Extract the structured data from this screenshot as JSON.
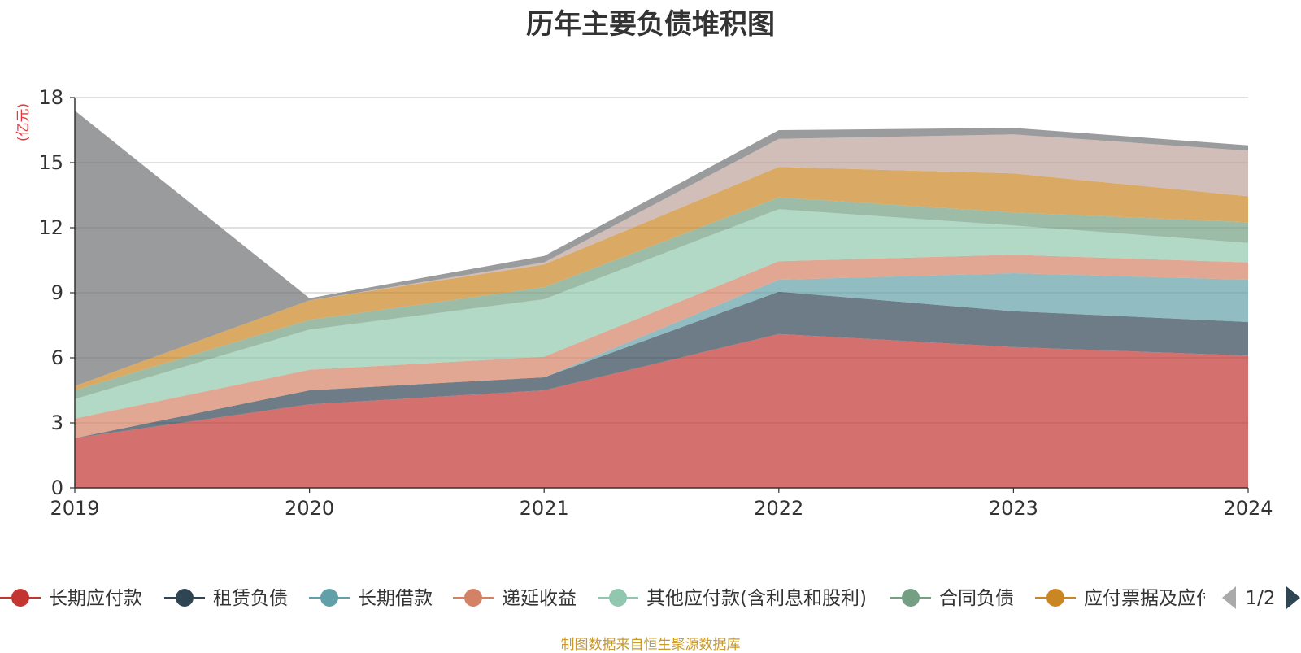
{
  "chart_data": {
    "type": "area",
    "title": "历年主要负债堆积图",
    "unit": "(亿元)",
    "x": [
      "2019",
      "2020",
      "2021",
      "2022",
      "2023",
      "2024"
    ],
    "ylim": [
      0,
      18
    ],
    "yticks": [
      "0",
      "3",
      "6",
      "9",
      "12",
      "15",
      "18"
    ],
    "grid": true,
    "legend_position": "bottom",
    "series": [
      {
        "name": "长期应付款",
        "color": "#c23531",
        "values": [
          2.3,
          3.85,
          4.5,
          7.1,
          6.5,
          6.1
        ]
      },
      {
        "name": "租赁负债",
        "color": "#2f4554",
        "values": [
          0.0,
          0.65,
          0.6,
          1.95,
          1.65,
          1.55
        ]
      },
      {
        "name": "长期借款",
        "color": "#61a0a8",
        "values": [
          0.0,
          0.0,
          0.0,
          0.55,
          1.75,
          1.95
        ]
      },
      {
        "name": "递延收益",
        "color": "#d48265",
        "values": [
          0.9,
          0.95,
          0.95,
          0.85,
          0.85,
          0.8
        ]
      },
      {
        "name": "其他应付款(含利息和股利)",
        "color": "#91c7ae",
        "values": [
          0.9,
          1.85,
          2.65,
          2.4,
          1.35,
          0.9
        ]
      },
      {
        "name": "合同负债",
        "color": "#749f83",
        "values": [
          0.4,
          0.45,
          0.55,
          0.55,
          0.6,
          0.95
        ]
      },
      {
        "name": "应付票据及应付账款",
        "color": "#ca8622",
        "values": [
          0.2,
          0.9,
          1.05,
          1.4,
          1.8,
          1.2
        ]
      },
      {
        "name": "",
        "color": "#bda29a",
        "values": [
          0.0,
          0.0,
          0.1,
          1.3,
          1.8,
          2.1
        ]
      },
      {
        "name": "",
        "color": "#6e7074",
        "values": [
          12.7,
          0.1,
          0.3,
          0.4,
          0.3,
          0.25
        ]
      }
    ],
    "legend_page": "1/2"
  },
  "footer": {
    "source": "制图数据来自恒生聚源数据库"
  }
}
